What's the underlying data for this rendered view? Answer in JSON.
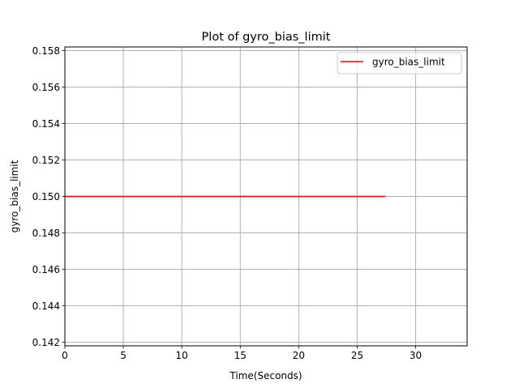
{
  "chart_data": {
    "type": "line",
    "title": "Plot of gyro_bias_limit",
    "xlabel": "Time(Seconds)",
    "ylabel": "gyro_bias_limit",
    "xlim": [
      0,
      34.4
    ],
    "ylim": [
      0.1418,
      0.1582
    ],
    "xticks": [
      0,
      5,
      10,
      15,
      20,
      25,
      30
    ],
    "xtick_labels": [
      "0",
      "5",
      "10",
      "15",
      "20",
      "25",
      "30"
    ],
    "yticks": [
      0.142,
      0.144,
      0.146,
      0.148,
      0.15,
      0.152,
      0.154,
      0.156,
      0.158
    ],
    "ytick_labels": [
      "0.142",
      "0.144",
      "0.146",
      "0.148",
      "0.150",
      "0.152",
      "0.154",
      "0.156",
      "0.158"
    ],
    "grid": true,
    "legend_position": "top-right",
    "series": [
      {
        "name": "gyro_bias_limit",
        "color": "#ff0000",
        "x": [
          0,
          27.4
        ],
        "y": [
          0.15,
          0.15
        ]
      }
    ]
  }
}
